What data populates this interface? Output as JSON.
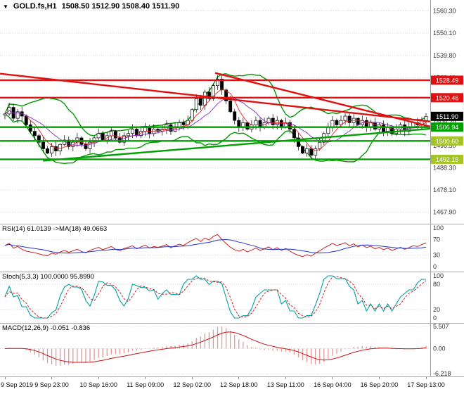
{
  "header": {
    "dropdown_icon": "▼",
    "title": "GOLD.fs,H1",
    "ohlc": "1508.50 1512.90 1508.40 1511.90"
  },
  "rsi": {
    "label": "RSI(14) 61.0139  ->MA(18) 49.0663"
  },
  "stoch": {
    "label": "Stoch(5,3,3) 100.0000 95.8990"
  },
  "macd": {
    "label": "MACD(12,26,9) -0.051 -0.836"
  },
  "colors": {
    "background": "#ffffff",
    "grid": "#d6d6d6",
    "axis_line": "#9a9a9a",
    "candle_up": "#ffffff",
    "candle_down": "#000000",
    "bollinger": "#009900",
    "ma_fast": "#ee2222",
    "ma_slow": "#7b2fbe",
    "rsi_line": "#cc2222",
    "rsi_ma": "#2233cc",
    "stoch_k": "#00a0a0",
    "stoch_d": "#cc2222",
    "macd_hist": "#e39898",
    "macd_line": "#cc1111"
  },
  "chart_data": {
    "type": "candlestick",
    "title": "GOLD.fs,H1",
    "ohlc_current": {
      "open": 1508.5,
      "high": 1512.9,
      "low": 1508.4,
      "close": 1511.9
    },
    "y_axis": {
      "min": 1464.5,
      "max": 1559.5,
      "ticks": [
        1560.3,
        1550.1,
        1539.8,
        1529.6,
        1519.4,
        1509.2,
        1498.5,
        1488.3,
        1478.1,
        1467.9
      ]
    },
    "x_labels": [
      "9 Sep 2019",
      "9 Sep 23:00",
      "10 Sep 16:00",
      "11 Sep 09:00",
      "12 Sep 02:00",
      "12 Sep 18:00",
      "13 Sep 11:00",
      "16 Sep 04:00",
      "16 Sep 20:00",
      "17 Sep 13:00"
    ],
    "closes": [
      1513,
      1516,
      1511,
      1514,
      1512,
      1508,
      1505,
      1503,
      1500,
      1497,
      1495,
      1498,
      1496,
      1499,
      1501,
      1498,
      1500,
      1502,
      1499,
      1497,
      1500,
      1502,
      1504,
      1501,
      1503,
      1505,
      1502,
      1500,
      1503,
      1504,
      1506,
      1503,
      1505,
      1507,
      1504,
      1506,
      1505,
      1506,
      1508,
      1505,
      1507,
      1509,
      1508,
      1510,
      1515,
      1520,
      1517,
      1523,
      1520,
      1526,
      1529,
      1524,
      1519,
      1514,
      1510,
      1507,
      1509,
      1506,
      1508,
      1510,
      1507,
      1509,
      1511,
      1508,
      1510,
      1507,
      1509,
      1506,
      1502,
      1498,
      1495,
      1497,
      1494,
      1497,
      1500,
      1504,
      1507,
      1510,
      1508,
      1510,
      1512,
      1509,
      1511,
      1508,
      1510,
      1507,
      1509,
      1506,
      1508,
      1505,
      1507,
      1504,
      1506,
      1508,
      1505,
      1507,
      1509,
      1508,
      1510,
      1511.9
    ],
    "levels": [
      {
        "price": 1528.49,
        "label": "1528.49",
        "line": "#e01010",
        "box": "#e01010",
        "text": "#ffffff",
        "type": "resistance"
      },
      {
        "price": 1520.46,
        "label": "1520.46",
        "line": "#e01010",
        "box": "#e01010",
        "text": "#ffffff",
        "type": "resistance"
      },
      {
        "price": 1511.9,
        "label": "1511.90",
        "line": null,
        "box": "#000000",
        "text": "#ffffff",
        "type": "current-price"
      },
      {
        "price": 1506.94,
        "label": "1506.94",
        "line": "#00a000",
        "box": "#00a000",
        "text": "#ffffff",
        "type": "support"
      },
      {
        "price": 1500.6,
        "label": "1500.60",
        "line": "#00a000",
        "box": "#a4c428",
        "text": "#ffffff",
        "type": "support"
      },
      {
        "price": 1492.15,
        "label": "1492.15",
        "line": "#00a000",
        "box": "#a4c428",
        "text": "#ffffff",
        "type": "support"
      }
    ],
    "trendlines": [
      {
        "x1": 0.0,
        "p1": 1531.5,
        "x2": 1.0,
        "p2": 1509.5,
        "color": "#e01010",
        "width": 2.4,
        "type": "resistance-trend"
      },
      {
        "x1": 0.5,
        "p1": 1531.8,
        "x2": 1.0,
        "p2": 1507.2,
        "color": "#e01010",
        "width": 2.4,
        "type": "resistance-trend"
      },
      {
        "x1": 0.1,
        "p1": 1491.5,
        "x2": 1.0,
        "p2": 1506.2,
        "color": "#00a000",
        "width": 2.4,
        "type": "support-trend"
      }
    ],
    "indicators": {
      "bollinger": {
        "period": 14,
        "deviation": 2
      },
      "rsi": {
        "period": 14,
        "value": 61.0139,
        "ma_period": 18,
        "ma_value": 49.0663,
        "ticks": [
          100,
          70,
          30,
          0
        ],
        "levels": [
          70,
          30
        ],
        "range": [
          0,
          100
        ],
        "values": [
          55,
          60,
          48,
          52,
          45,
          40,
          38,
          36,
          33,
          30,
          28,
          35,
          32,
          38,
          42,
          37,
          41,
          45,
          39,
          36,
          42,
          46,
          50,
          44,
          48,
          52,
          45,
          41,
          47,
          50,
          54,
          46,
          51,
          56,
          48,
          52,
          50,
          53,
          57,
          49,
          54,
          58,
          55,
          62,
          68,
          73,
          65,
          74,
          69,
          78,
          83,
          70,
          60,
          50,
          44,
          40,
          45,
          38,
          43,
          48,
          42,
          46,
          51,
          44,
          49,
          42,
          47,
          40,
          34,
          29,
          26,
          31,
          27,
          35,
          41,
          48,
          54,
          60,
          55,
          58,
          62,
          54,
          59,
          51,
          56,
          49,
          53,
          46,
          50,
          44,
          48,
          42,
          46,
          50,
          45,
          49,
          54,
          52,
          57,
          61
        ]
      },
      "stochastic": {
        "params": "5,3,3",
        "k": 100.0,
        "d": 95.899,
        "ticks": [
          100,
          80,
          20,
          0
        ],
        "levels": [
          80,
          20
        ],
        "range": [
          0,
          100
        ]
      },
      "macd": {
        "params": "12,26,9",
        "value": -0.051,
        "signal": -0.836,
        "range": [
          -6.218,
          5.507
        ],
        "ticks": [
          {
            "value": 5.507,
            "label": "5.507"
          },
          {
            "value": 0,
            "label": "0.00"
          },
          {
            "value": -6.218,
            "label": "-6.218"
          }
        ]
      }
    }
  }
}
